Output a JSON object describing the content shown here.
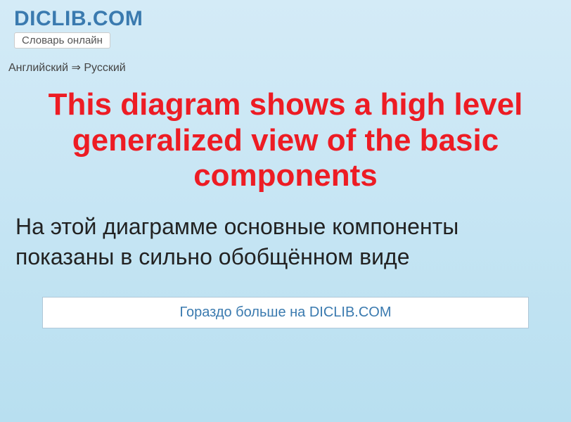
{
  "header": {
    "site_name": "DICLIB.COM",
    "tagline": "Словарь онлайн"
  },
  "breadcrumb": {
    "text": "Английский ⇒ Русский"
  },
  "main": {
    "title": "This diagram shows a high level generalized view of the basic components",
    "translation": "На этой диаграмме основные компоненты показаны в сильно обобщённом виде"
  },
  "footer": {
    "more_link": "Гораздо больше на DICLIB.COM"
  },
  "colors": {
    "title_color": "#ed1c24",
    "link_color": "#3a7aaf",
    "bg_gradient_top": "#d4ebf7",
    "bg_gradient_bottom": "#b8dff0",
    "text_color": "#222222"
  }
}
